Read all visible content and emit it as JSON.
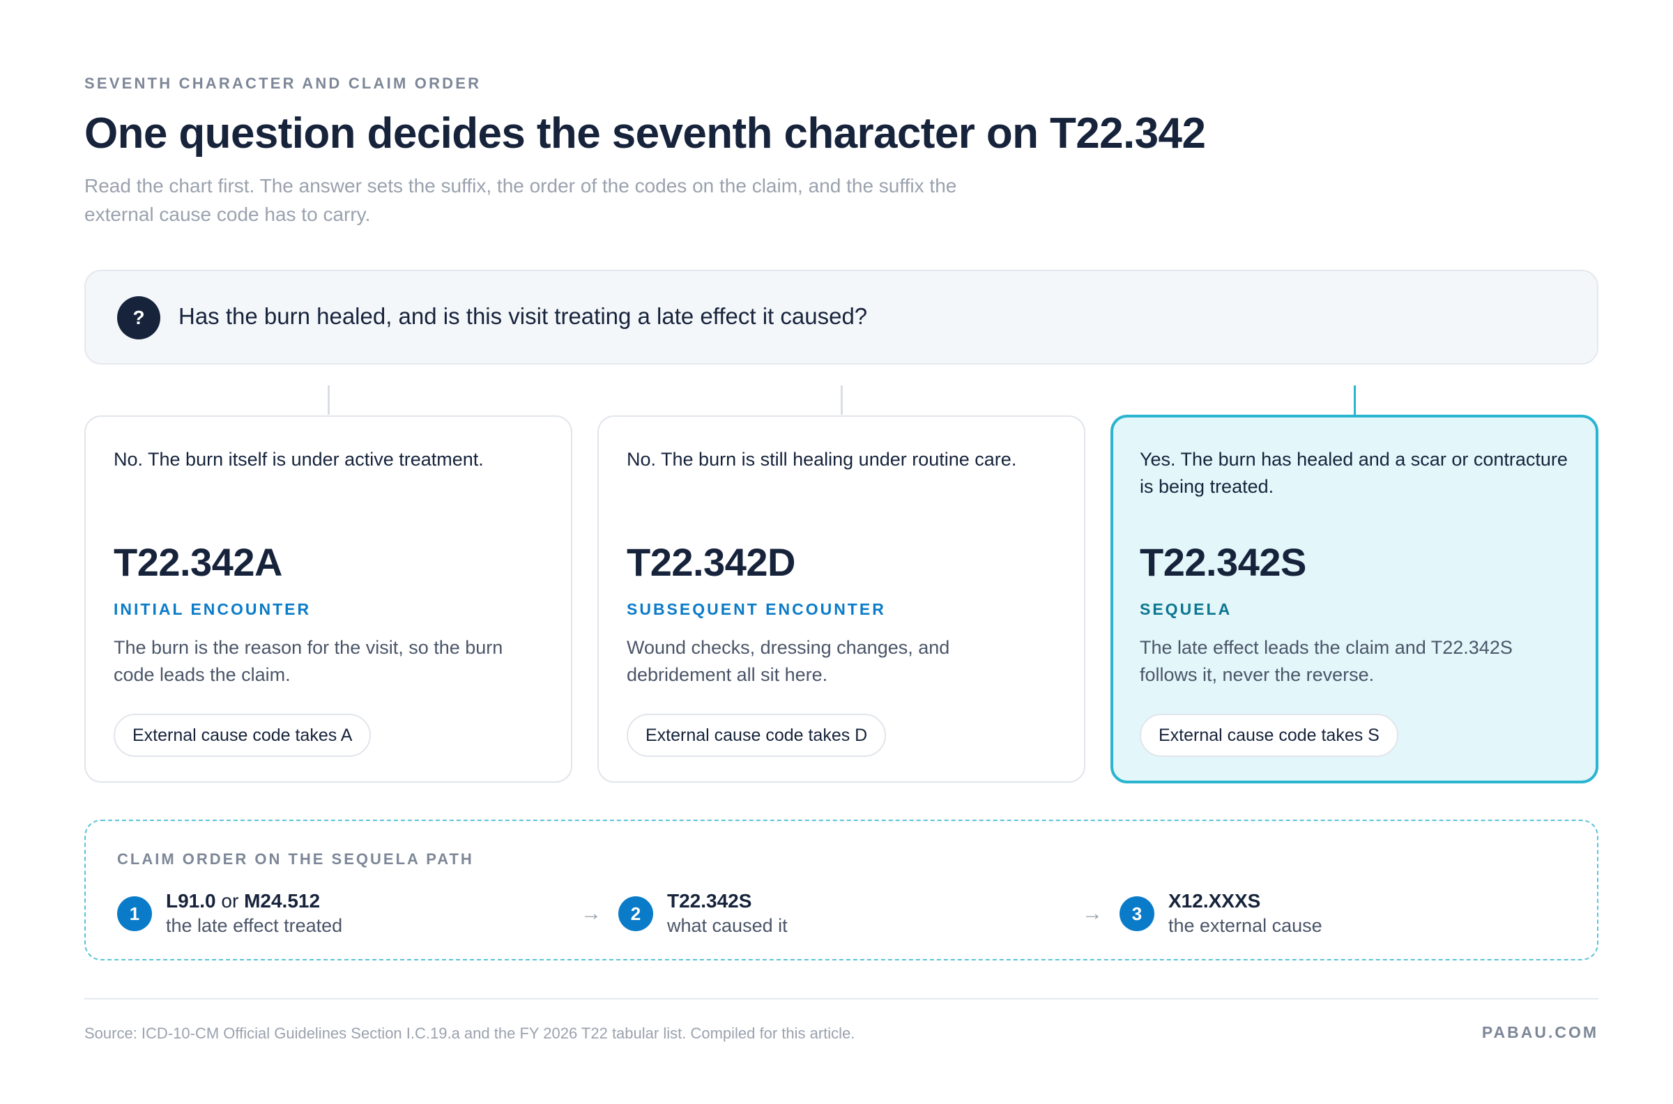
{
  "header": {
    "eyebrow": "SEVENTH CHARACTER AND CLAIM ORDER",
    "title": "One question decides the seventh character on T22.342",
    "subtitle": "Read the chart first. The answer sets the suffix, the order of the codes on the claim, and the suffix the external cause code has to carry."
  },
  "question": {
    "icon": "question-mark-icon",
    "icon_glyph": "?",
    "text": "Has the burn healed, and is this visit treating a late effect it caused?"
  },
  "cards": [
    {
      "condition": "No. The burn itself is under active treatment.",
      "code": "T22.342A",
      "label": "INITIAL ENCOUNTER",
      "description": "The burn is the reason for the visit, so the burn code leads the claim.",
      "chip": "External cause code takes A",
      "highlighted": false
    },
    {
      "condition": "No. The burn is still healing under routine care.",
      "code": "T22.342D",
      "label": "SUBSEQUENT ENCOUNTER",
      "description": "Wound checks, dressing changes, and debridement all sit here.",
      "chip": "External cause code takes D",
      "highlighted": false
    },
    {
      "condition": "Yes. The burn has healed and a scar or contracture is being treated.",
      "code": "T22.342S",
      "label": "SEQUELA",
      "description": "The late effect leads the claim and T22.342S follows it, never the reverse.",
      "chip": "External cause code takes S",
      "highlighted": true
    }
  ],
  "claim_order": {
    "title": "CLAIM ORDER ON THE SEQUELA PATH",
    "arrow_glyph": "→",
    "steps": [
      {
        "num": "1",
        "code_a": "L91.0",
        "connector": "or",
        "code_b": "M24.512",
        "caption": "the late effect treated"
      },
      {
        "num": "2",
        "code_a": "T22.342S",
        "caption": "what caused it"
      },
      {
        "num": "3",
        "code_a": "X12.XXXS",
        "caption": "the external cause"
      }
    ]
  },
  "footer": {
    "source": "Source: ICD-10-CM Official Guidelines Section I.C.19.a and the FY 2026 T22 tabular list. Compiled for this article.",
    "brand": "PABAU.COM"
  },
  "colors": {
    "navy": "#16233b",
    "accent_blue": "#0a7bc8",
    "teal": "#2ab4d0",
    "highlight_bg": "#e3f6fa"
  }
}
